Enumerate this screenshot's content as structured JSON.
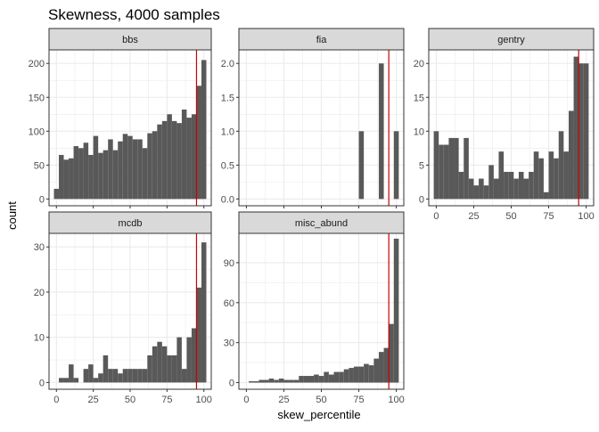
{
  "chart_data": {
    "type": "bar",
    "title": "Skewness, 4000 samples",
    "xlabel": "skew_percentile",
    "ylabel": "count",
    "grid": true,
    "reference_line": {
      "x": 95,
      "color": "#cc0000"
    },
    "bar_color": "#595959",
    "strip_fill": "#d9d9d9",
    "panel_border": "#333333",
    "grid_color": "#ebebeb",
    "xlim": [
      -5,
      105
    ],
    "bin_width": 3.33,
    "x_ticks": [
      0,
      25,
      50,
      75,
      100
    ],
    "panels": [
      {
        "name": "bbs",
        "ylim": [
          -10,
          220
        ],
        "y_ticks": [
          0,
          50,
          100,
          150,
          200
        ],
        "bins": [
          {
            "x": 0,
            "y": 15
          },
          {
            "x": 3.33,
            "y": 65
          },
          {
            "x": 6.67,
            "y": 58
          },
          {
            "x": 10,
            "y": 60
          },
          {
            "x": 13.33,
            "y": 78
          },
          {
            "x": 16.67,
            "y": 75
          },
          {
            "x": 20,
            "y": 83
          },
          {
            "x": 23.33,
            "y": 65
          },
          {
            "x": 26.67,
            "y": 93
          },
          {
            "x": 30,
            "y": 68
          },
          {
            "x": 33.33,
            "y": 72
          },
          {
            "x": 36.67,
            "y": 88
          },
          {
            "x": 40,
            "y": 72
          },
          {
            "x": 43.33,
            "y": 85
          },
          {
            "x": 46.67,
            "y": 96
          },
          {
            "x": 50,
            "y": 93
          },
          {
            "x": 53.33,
            "y": 88
          },
          {
            "x": 56.67,
            "y": 88
          },
          {
            "x": 60,
            "y": 75
          },
          {
            "x": 63.33,
            "y": 97
          },
          {
            "x": 66.67,
            "y": 100
          },
          {
            "x": 70,
            "y": 110
          },
          {
            "x": 73.33,
            "y": 115
          },
          {
            "x": 76.67,
            "y": 125
          },
          {
            "x": 80,
            "y": 115
          },
          {
            "x": 83.33,
            "y": 112
          },
          {
            "x": 86.67,
            "y": 132
          },
          {
            "x": 90,
            "y": 120
          },
          {
            "x": 93.33,
            "y": 125
          },
          {
            "x": 96.67,
            "y": 167
          },
          {
            "x": 100,
            "y": 205
          }
        ]
      },
      {
        "name": "fia",
        "ylim": [
          -0.1,
          2.2
        ],
        "y_ticks": [
          0.0,
          0.5,
          1.0,
          1.5,
          2.0
        ],
        "y_tick_labels": [
          "0.0",
          "0.5",
          "1.0",
          "1.5",
          "2.0"
        ],
        "bins": [
          {
            "x": 76.67,
            "y": 1
          },
          {
            "x": 90,
            "y": 2
          },
          {
            "x": 100,
            "y": 1
          }
        ]
      },
      {
        "name": "gentry",
        "ylim": [
          -1,
          22
        ],
        "y_ticks": [
          0,
          5,
          10,
          15,
          20
        ],
        "bins": [
          {
            "x": 0,
            "y": 10
          },
          {
            "x": 3.33,
            "y": 8
          },
          {
            "x": 6.67,
            "y": 8
          },
          {
            "x": 10,
            "y": 9
          },
          {
            "x": 13.33,
            "y": 9
          },
          {
            "x": 16.67,
            "y": 4
          },
          {
            "x": 20,
            "y": 9
          },
          {
            "x": 23.33,
            "y": 3
          },
          {
            "x": 26.67,
            "y": 2
          },
          {
            "x": 30,
            "y": 3
          },
          {
            "x": 33.33,
            "y": 2
          },
          {
            "x": 36.67,
            "y": 5
          },
          {
            "x": 40,
            "y": 3
          },
          {
            "x": 43.33,
            "y": 7
          },
          {
            "x": 46.67,
            "y": 4
          },
          {
            "x": 50,
            "y": 4
          },
          {
            "x": 53.33,
            "y": 3
          },
          {
            "x": 56.67,
            "y": 4
          },
          {
            "x": 60,
            "y": 3
          },
          {
            "x": 63.33,
            "y": 4
          },
          {
            "x": 66.67,
            "y": 7
          },
          {
            "x": 70,
            "y": 6
          },
          {
            "x": 73.33,
            "y": 1
          },
          {
            "x": 76.67,
            "y": 7
          },
          {
            "x": 80,
            "y": 6
          },
          {
            "x": 83.33,
            "y": 10
          },
          {
            "x": 86.67,
            "y": 7
          },
          {
            "x": 90,
            "y": 13
          },
          {
            "x": 93.33,
            "y": 21
          },
          {
            "x": 96.67,
            "y": 20
          },
          {
            "x": 100,
            "y": 20
          }
        ]
      },
      {
        "name": "mcdb",
        "ylim": [
          -1.5,
          33
        ],
        "y_ticks": [
          0,
          10,
          20,
          30
        ],
        "bins": [
          {
            "x": 3.33,
            "y": 1
          },
          {
            "x": 6.67,
            "y": 1
          },
          {
            "x": 10,
            "y": 4
          },
          {
            "x": 13.33,
            "y": 1
          },
          {
            "x": 20,
            "y": 3
          },
          {
            "x": 23.33,
            "y": 4
          },
          {
            "x": 26.67,
            "y": 1
          },
          {
            "x": 30,
            "y": 2
          },
          {
            "x": 33.33,
            "y": 6
          },
          {
            "x": 36.67,
            "y": 3
          },
          {
            "x": 40,
            "y": 3
          },
          {
            "x": 43.33,
            "y": 2
          },
          {
            "x": 46.67,
            "y": 3
          },
          {
            "x": 50,
            "y": 3
          },
          {
            "x": 53.33,
            "y": 3
          },
          {
            "x": 56.67,
            "y": 3
          },
          {
            "x": 60,
            "y": 3
          },
          {
            "x": 63.33,
            "y": 6
          },
          {
            "x": 66.67,
            "y": 8
          },
          {
            "x": 70,
            "y": 9
          },
          {
            "x": 73.33,
            "y": 8
          },
          {
            "x": 76.67,
            "y": 6
          },
          {
            "x": 80,
            "y": 6
          },
          {
            "x": 83.33,
            "y": 10
          },
          {
            "x": 86.67,
            "y": 3
          },
          {
            "x": 90,
            "y": 10
          },
          {
            "x": 93.33,
            "y": 12
          },
          {
            "x": 96.67,
            "y": 21
          },
          {
            "x": 100,
            "y": 31
          }
        ]
      },
      {
        "name": "misc_abund",
        "ylim": [
          -5,
          112
        ],
        "y_ticks": [
          0,
          30,
          60,
          90
        ],
        "bins": [
          {
            "x": 3.33,
            "y": 1
          },
          {
            "x": 6.67,
            "y": 1
          },
          {
            "x": 10,
            "y": 2
          },
          {
            "x": 13.33,
            "y": 2
          },
          {
            "x": 16.67,
            "y": 3
          },
          {
            "x": 20,
            "y": 2
          },
          {
            "x": 23.33,
            "y": 3
          },
          {
            "x": 26.67,
            "y": 2
          },
          {
            "x": 30,
            "y": 2
          },
          {
            "x": 33.33,
            "y": 2
          },
          {
            "x": 36.67,
            "y": 5
          },
          {
            "x": 40,
            "y": 5
          },
          {
            "x": 43.33,
            "y": 5
          },
          {
            "x": 46.67,
            "y": 6
          },
          {
            "x": 50,
            "y": 5
          },
          {
            "x": 53.33,
            "y": 8
          },
          {
            "x": 56.67,
            "y": 6
          },
          {
            "x": 60,
            "y": 8
          },
          {
            "x": 63.33,
            "y": 8
          },
          {
            "x": 66.67,
            "y": 10
          },
          {
            "x": 70,
            "y": 11
          },
          {
            "x": 73.33,
            "y": 12
          },
          {
            "x": 76.67,
            "y": 12
          },
          {
            "x": 80,
            "y": 14
          },
          {
            "x": 83.33,
            "y": 13
          },
          {
            "x": 86.67,
            "y": 18
          },
          {
            "x": 90,
            "y": 23
          },
          {
            "x": 93.33,
            "y": 26
          },
          {
            "x": 96.67,
            "y": 44
          },
          {
            "x": 100,
            "y": 108
          }
        ]
      }
    ]
  }
}
